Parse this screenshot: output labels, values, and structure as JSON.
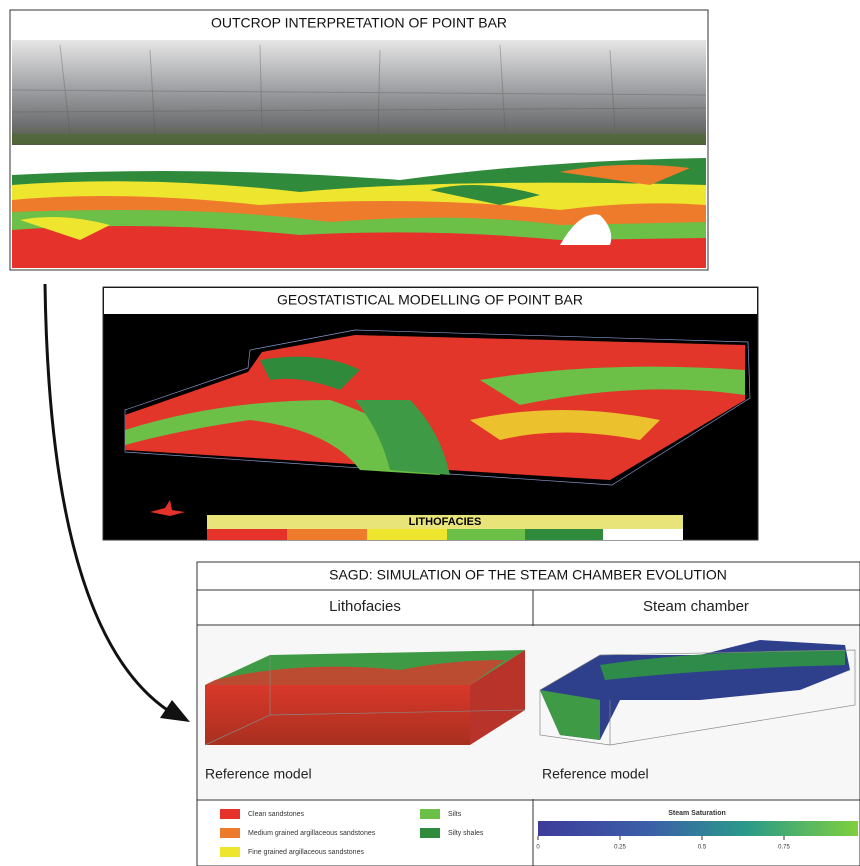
{
  "panels": [
    {
      "title": "OUTCROP INTERPRETATION OF POINT BAR"
    },
    {
      "title": "GEOSTATISTICAL MODELLING OF POINT BAR",
      "colorbar_label": "LITHOFACIES"
    },
    {
      "title": "SAGD: SIMULATION OF THE STEAM CHAMBER EVOLUTION",
      "columns": [
        {
          "header": "Lithofacies",
          "caption": "Reference model"
        },
        {
          "header": "Steam chamber",
          "caption": "Reference model"
        }
      ],
      "legend": [
        {
          "label": "Clean sandstones",
          "color": "#e5322b"
        },
        {
          "label": "Medium grained argillaceous sandstones",
          "color": "#ee7a2c"
        },
        {
          "label": "Fine grained argillaceous sandstones",
          "color": "#eee52e"
        },
        {
          "label": "Silts",
          "color": "#6cbf47"
        },
        {
          "label": "Silty shales",
          "color": "#2f8b3b"
        }
      ],
      "colorbar": {
        "title": "Steam Saturation",
        "ticks": [
          "0",
          "0.25",
          "0.5",
          "0.75"
        ]
      }
    }
  ]
}
